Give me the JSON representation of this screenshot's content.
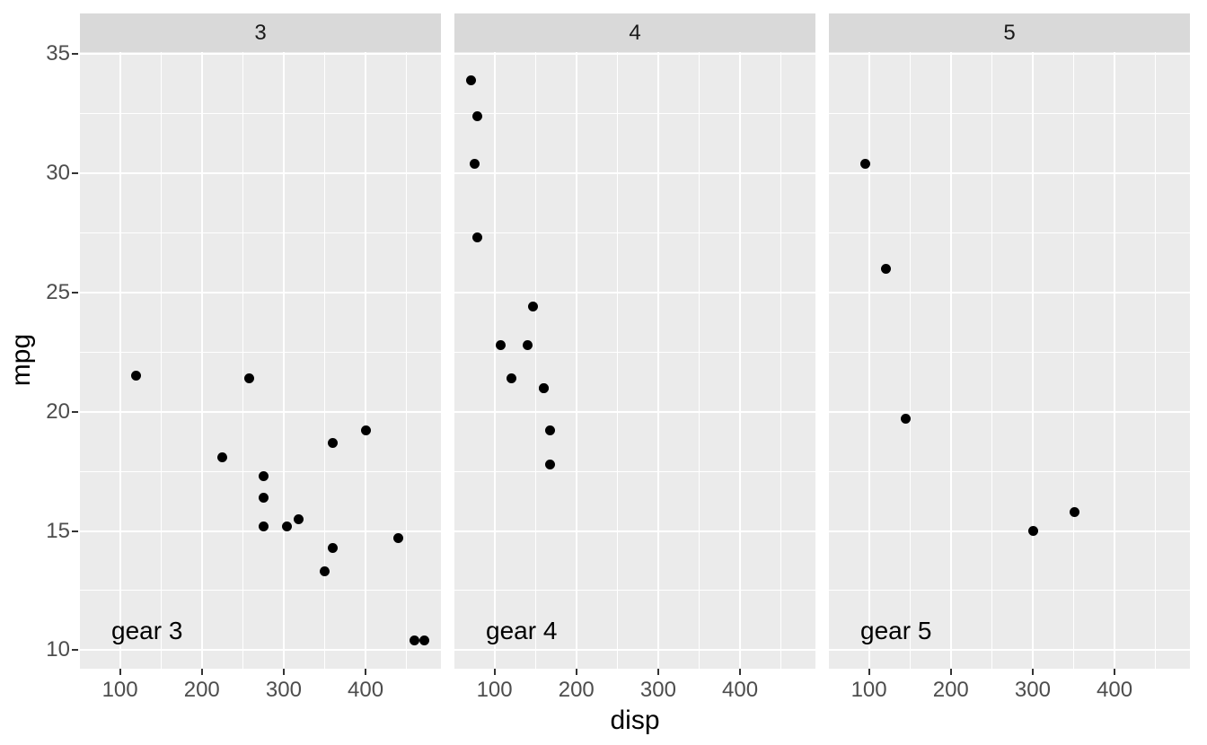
{
  "chart_data": {
    "type": "scatter",
    "title": "",
    "xlabel": "disp",
    "ylabel": "mpg",
    "facet_variable": "gear",
    "grid": true,
    "legend": "none",
    "xlim": [
      51.06,
      492.05
    ],
    "ylim": [
      9.225,
      35.075
    ],
    "x_major_ticks": [
      100,
      200,
      300,
      400
    ],
    "y_major_ticks": [
      10,
      15,
      20,
      25,
      30,
      35
    ],
    "x_minor_gridlines": [
      150,
      250,
      350,
      450
    ],
    "y_minor_gridlines": [
      12.5,
      17.5,
      22.5,
      27.5,
      32.5
    ],
    "facets": [
      {
        "strip_label": "3",
        "annotation": {
          "label": "gear 3",
          "x": 133,
          "y": 10.8
        },
        "points": [
          {
            "x": 120.1,
            "y": 21.5
          },
          {
            "x": 225.0,
            "y": 18.1
          },
          {
            "x": 258.0,
            "y": 21.4
          },
          {
            "x": 275.8,
            "y": 17.3
          },
          {
            "x": 275.8,
            "y": 16.4
          },
          {
            "x": 275.8,
            "y": 15.2
          },
          {
            "x": 304.0,
            "y": 15.2
          },
          {
            "x": 318.0,
            "y": 15.5
          },
          {
            "x": 350.0,
            "y": 13.3
          },
          {
            "x": 360.0,
            "y": 18.7
          },
          {
            "x": 360.0,
            "y": 14.3
          },
          {
            "x": 400.0,
            "y": 19.2
          },
          {
            "x": 440.0,
            "y": 14.7
          },
          {
            "x": 460.0,
            "y": 10.4
          },
          {
            "x": 472.0,
            "y": 10.4
          }
        ]
      },
      {
        "strip_label": "4",
        "annotation": {
          "label": "gear 4",
          "x": 133,
          "y": 10.8
        },
        "points": [
          {
            "x": 71.1,
            "y": 33.9
          },
          {
            "x": 78.7,
            "y": 32.4
          },
          {
            "x": 75.7,
            "y": 30.4
          },
          {
            "x": 79.0,
            "y": 27.3
          },
          {
            "x": 146.7,
            "y": 24.4
          },
          {
            "x": 108.0,
            "y": 22.8
          },
          {
            "x": 140.8,
            "y": 22.8
          },
          {
            "x": 121.0,
            "y": 21.4
          },
          {
            "x": 160.0,
            "y": 21.0
          },
          {
            "x": 160.0,
            "y": 21.0
          },
          {
            "x": 167.6,
            "y": 19.2
          },
          {
            "x": 167.6,
            "y": 17.8
          }
        ]
      },
      {
        "strip_label": "5",
        "annotation": {
          "label": "gear 5",
          "x": 133,
          "y": 10.8
        },
        "points": [
          {
            "x": 95.1,
            "y": 30.4
          },
          {
            "x": 120.3,
            "y": 26.0
          },
          {
            "x": 145.0,
            "y": 19.7
          },
          {
            "x": 301.0,
            "y": 15.0
          },
          {
            "x": 351.0,
            "y": 15.8
          }
        ]
      }
    ],
    "colors": {
      "panel_background": "#ebebeb",
      "strip_background": "#d9d9d9",
      "gridline": "#ffffff",
      "point": "#000000",
      "tick_mark": "#333333",
      "tick_label": "#4d4d4d",
      "axis_title": "#000000",
      "strip_text": "#1a1a1a",
      "figure_background": "#ffffff"
    }
  }
}
